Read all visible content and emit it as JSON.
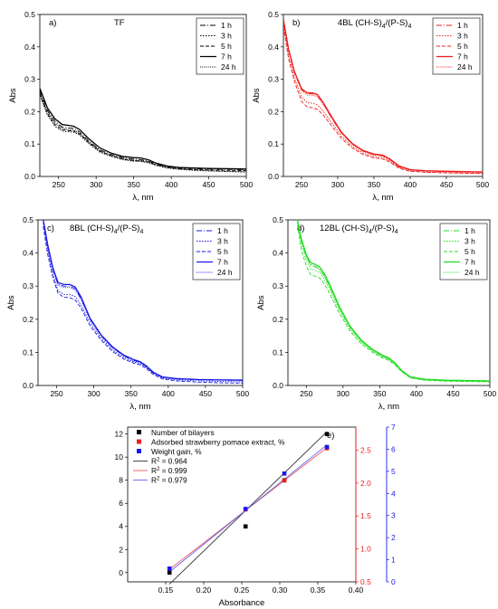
{
  "figure": {
    "panels": [
      {
        "panel_label": "a)",
        "title": "TF",
        "title_sub": "",
        "xlabel": "λ, nm",
        "ylabel": "Abs",
        "xlim": [
          225,
          500
        ],
        "ylim": [
          0,
          0.5
        ],
        "xticks": [
          250,
          300,
          350,
          400,
          450,
          500
        ],
        "yticks": [
          0.0,
          0.1,
          0.2,
          0.3,
          0.4,
          0.5
        ],
        "color": "#000000",
        "legend": [
          "1 h",
          "3 h",
          "5 h",
          "7 h",
          "24 h"
        ]
      },
      {
        "panel_label": "b)",
        "title": "4BL (CH-S)",
        "title_sub": "4",
        "title_tail": "/(P-S)",
        "title_sub2": "4",
        "xlabel": "λ, nm",
        "ylabel": "Abs",
        "xlim": [
          225,
          500
        ],
        "ylim": [
          0,
          0.5
        ],
        "xticks": [
          250,
          300,
          350,
          400,
          450,
          500
        ],
        "yticks": [
          0.0,
          0.1,
          0.2,
          0.3,
          0.4,
          0.5
        ],
        "color": "#ee1c1c",
        "legend": [
          "1 h",
          "3 h",
          "5 h",
          "7 h",
          "24 h"
        ]
      },
      {
        "panel_label": "c)",
        "title": "8BL (CH-S)",
        "title_sub": "4",
        "title_tail": "/(P-S)",
        "title_sub2": "4",
        "xlabel": "λ, nm",
        "ylabel": "Abs",
        "xlim": [
          225,
          500
        ],
        "ylim": [
          0,
          0.5
        ],
        "xticks": [
          250,
          300,
          350,
          400,
          450,
          500
        ],
        "yticks": [
          0.0,
          0.1,
          0.2,
          0.3,
          0.4,
          0.5
        ],
        "color": "#1a1ae6",
        "legend": [
          "1 h",
          "3 h",
          "5 h",
          "7 h",
          "24 h"
        ]
      },
      {
        "panel_label": "d)",
        "title": "12BL (CH-S)",
        "title_sub": "4",
        "title_tail": "/(P-S)",
        "title_sub2": "4",
        "xlabel": "λ, nm",
        "ylabel": "Abs",
        "xlim": [
          225,
          500
        ],
        "ylim": [
          0,
          0.5
        ],
        "xticks": [
          250,
          300,
          350,
          400,
          450,
          500
        ],
        "yticks": [
          0.0,
          0.1,
          0.2,
          0.3,
          0.4,
          0.5
        ],
        "color": "#22dd22",
        "legend": [
          "1 h",
          "3 h",
          "5 h",
          "7 h",
          "24 h"
        ]
      }
    ],
    "panel_e": {
      "panel_label": "e)",
      "xlabel": "Absorbance",
      "xlim": [
        0.1,
        0.4
      ],
      "xticks": [
        0.15,
        0.2,
        0.25,
        0.3,
        0.35,
        0.4
      ],
      "y_left_ticks": [
        0,
        2,
        4,
        6,
        8,
        10,
        12
      ],
      "y_red_ticks": [
        0.5,
        1.0,
        1.5,
        2.0,
        2.5
      ],
      "y_blue_ticks": [
        0,
        1,
        2,
        3,
        4,
        5,
        6,
        7
      ],
      "legend": [
        {
          "label": "Number of bilayers",
          "kind": "square",
          "color": "#000000"
        },
        {
          "label": "Adsorbed strawberry pomace extract, %",
          "kind": "square",
          "color": "#ee1c1c"
        },
        {
          "label": "Weight gain, %",
          "kind": "square",
          "color": "#1a1ae6"
        },
        {
          "label": "R",
          "sup": "2",
          "tail": " = 0.964",
          "kind": "line",
          "color": "#333333"
        },
        {
          "label": "R",
          "sup": "2",
          "tail": " = 0.999",
          "kind": "line",
          "color": "#ee5555"
        },
        {
          "label": "R",
          "sup": "2",
          "tail": " = 0.979",
          "kind": "line",
          "color": "#6666ee"
        }
      ],
      "colors": {
        "black": "#000000",
        "red": "#ee1c1c",
        "blue": "#1a1ae6"
      }
    }
  },
  "chart_data": [
    {
      "type": "line",
      "title": "TF",
      "xlabel": "λ, nm",
      "ylabel": "Abs",
      "xlim": [
        225,
        500
      ],
      "ylim": [
        0,
        0.5
      ],
      "x": [
        225,
        235,
        245,
        255,
        262,
        270,
        278,
        290,
        305,
        320,
        335,
        350,
        360,
        370,
        380,
        395,
        410,
        430,
        450,
        475,
        500
      ],
      "series": [
        {
          "name": "1 h",
          "values": [
            0.265,
            0.205,
            0.17,
            0.152,
            0.15,
            0.148,
            0.138,
            0.11,
            0.082,
            0.068,
            0.058,
            0.053,
            0.052,
            0.047,
            0.038,
            0.03,
            0.026,
            0.024,
            0.023,
            0.022,
            0.021
          ]
        },
        {
          "name": "3 h",
          "values": [
            0.25,
            0.19,
            0.155,
            0.14,
            0.138,
            0.137,
            0.128,
            0.102,
            0.075,
            0.062,
            0.052,
            0.047,
            0.046,
            0.042,
            0.034,
            0.026,
            0.022,
            0.019,
            0.017,
            0.015,
            0.013
          ]
        },
        {
          "name": "5 h",
          "values": [
            0.255,
            0.195,
            0.16,
            0.144,
            0.142,
            0.14,
            0.131,
            0.105,
            0.078,
            0.064,
            0.054,
            0.049,
            0.048,
            0.044,
            0.036,
            0.028,
            0.024,
            0.021,
            0.02,
            0.019,
            0.018
          ]
        },
        {
          "name": "7 h",
          "values": [
            0.272,
            0.212,
            0.178,
            0.16,
            0.158,
            0.155,
            0.145,
            0.117,
            0.088,
            0.072,
            0.062,
            0.058,
            0.057,
            0.051,
            0.041,
            0.032,
            0.028,
            0.026,
            0.025,
            0.024,
            0.023
          ]
        },
        {
          "name": "24 h",
          "values": [
            0.26,
            0.2,
            0.165,
            0.148,
            0.145,
            0.143,
            0.134,
            0.107,
            0.079,
            0.065,
            0.055,
            0.05,
            0.049,
            0.045,
            0.036,
            0.027,
            0.023,
            0.02,
            0.018,
            0.016,
            0.015
          ]
        }
      ]
    },
    {
      "type": "line",
      "title": "4BL (CH-S)4/(P-S)4",
      "xlabel": "λ, nm",
      "ylabel": "Abs",
      "xlim": [
        225,
        500
      ],
      "ylim": [
        0,
        0.5
      ],
      "x": [
        225,
        232,
        240,
        250,
        258,
        265,
        272,
        280,
        292,
        305,
        320,
        335,
        350,
        362,
        372,
        385,
        400,
        420,
        450,
        475,
        500
      ],
      "series": [
        {
          "name": "1 h",
          "values": [
            0.48,
            0.39,
            0.32,
            0.268,
            0.255,
            0.255,
            0.25,
            0.225,
            0.18,
            0.135,
            0.1,
            0.078,
            0.067,
            0.064,
            0.052,
            0.03,
            0.02,
            0.017,
            0.015,
            0.014,
            0.013
          ]
        },
        {
          "name": "3 h",
          "values": [
            0.47,
            0.375,
            0.305,
            0.245,
            0.228,
            0.226,
            0.221,
            0.202,
            0.165,
            0.125,
            0.093,
            0.072,
            0.061,
            0.058,
            0.047,
            0.027,
            0.017,
            0.014,
            0.012,
            0.011,
            0.01
          ]
        },
        {
          "name": "5 h",
          "values": [
            0.462,
            0.365,
            0.295,
            0.232,
            0.214,
            0.212,
            0.207,
            0.19,
            0.155,
            0.118,
            0.088,
            0.068,
            0.057,
            0.054,
            0.044,
            0.025,
            0.016,
            0.013,
            0.011,
            0.01,
            0.009
          ]
        },
        {
          "name": "7 h",
          "values": [
            0.485,
            0.395,
            0.325,
            0.271,
            0.258,
            0.258,
            0.253,
            0.228,
            0.183,
            0.137,
            0.102,
            0.08,
            0.069,
            0.066,
            0.054,
            0.032,
            0.021,
            0.018,
            0.016,
            0.015,
            0.014
          ]
        },
        {
          "name": "24 h",
          "values": [
            0.482,
            0.392,
            0.322,
            0.265,
            0.251,
            0.251,
            0.246,
            0.222,
            0.178,
            0.133,
            0.099,
            0.077,
            0.066,
            0.063,
            0.051,
            0.03,
            0.02,
            0.017,
            0.015,
            0.014,
            0.013
          ]
        }
      ]
    },
    {
      "type": "line",
      "title": "8BL (CH-S)4/(P-S)4",
      "xlabel": "λ, nm",
      "ylabel": "Abs",
      "xlim": [
        225,
        500
      ],
      "ylim": [
        0,
        0.5
      ],
      "x": [
        232,
        238,
        245,
        252,
        260,
        268,
        275,
        283,
        295,
        310,
        325,
        340,
        355,
        362,
        370,
        380,
        392,
        410,
        440,
        470,
        500
      ],
      "series": [
        {
          "name": "1 h",
          "values": [
            0.5,
            0.42,
            0.35,
            0.305,
            0.3,
            0.3,
            0.292,
            0.262,
            0.2,
            0.15,
            0.115,
            0.09,
            0.075,
            0.07,
            0.058,
            0.038,
            0.025,
            0.02,
            0.017,
            0.016,
            0.015
          ]
        },
        {
          "name": "3 h",
          "values": [
            0.49,
            0.405,
            0.335,
            0.285,
            0.275,
            0.275,
            0.268,
            0.242,
            0.188,
            0.142,
            0.108,
            0.084,
            0.07,
            0.066,
            0.055,
            0.036,
            0.022,
            0.017,
            0.014,
            0.012,
            0.011
          ]
        },
        {
          "name": "5 h",
          "values": [
            0.48,
            0.395,
            0.325,
            0.278,
            0.266,
            0.265,
            0.258,
            0.233,
            0.18,
            0.136,
            0.103,
            0.08,
            0.066,
            0.062,
            0.052,
            0.033,
            0.02,
            0.014,
            0.01,
            0.008,
            0.007
          ]
        },
        {
          "name": "7 h",
          "values": [
            0.5,
            0.425,
            0.355,
            0.31,
            0.305,
            0.305,
            0.297,
            0.266,
            0.203,
            0.152,
            0.117,
            0.092,
            0.077,
            0.072,
            0.06,
            0.04,
            0.026,
            0.021,
            0.018,
            0.017,
            0.016
          ]
        },
        {
          "name": "24 h",
          "values": [
            0.497,
            0.418,
            0.348,
            0.302,
            0.296,
            0.296,
            0.288,
            0.258,
            0.197,
            0.148,
            0.113,
            0.088,
            0.073,
            0.069,
            0.057,
            0.038,
            0.025,
            0.02,
            0.018,
            0.017,
            0.017
          ]
        }
      ]
    },
    {
      "type": "line",
      "title": "12BL (CH-S)4/(P-S)4",
      "xlabel": "λ, nm",
      "ylabel": "Abs",
      "xlim": [
        225,
        500
      ],
      "ylim": [
        0,
        0.5
      ],
      "x": [
        238,
        243,
        250,
        256,
        262,
        268,
        275,
        283,
        295,
        310,
        325,
        340,
        355,
        362,
        370,
        380,
        392,
        410,
        440,
        470,
        500
      ],
      "series": [
        {
          "name": "1 h",
          "values": [
            0.5,
            0.44,
            0.39,
            0.365,
            0.36,
            0.352,
            0.33,
            0.295,
            0.235,
            0.175,
            0.135,
            0.107,
            0.088,
            0.082,
            0.068,
            0.044,
            0.025,
            0.018,
            0.015,
            0.014,
            0.013
          ]
        },
        {
          "name": "3 h",
          "values": [
            0.495,
            0.43,
            0.378,
            0.352,
            0.348,
            0.341,
            0.32,
            0.286,
            0.228,
            0.17,
            0.131,
            0.104,
            0.085,
            0.079,
            0.066,
            0.043,
            0.024,
            0.017,
            0.014,
            0.013,
            0.012
          ]
        },
        {
          "name": "5 h",
          "values": [
            0.485,
            0.412,
            0.36,
            0.335,
            0.33,
            0.325,
            0.305,
            0.273,
            0.218,
            0.163,
            0.126,
            0.1,
            0.082,
            0.076,
            0.064,
            0.041,
            0.023,
            0.016,
            0.013,
            0.012,
            0.011
          ]
        },
        {
          "name": "7 h",
          "values": [
            0.5,
            0.445,
            0.395,
            0.37,
            0.366,
            0.358,
            0.336,
            0.3,
            0.238,
            0.178,
            0.137,
            0.109,
            0.09,
            0.084,
            0.07,
            0.045,
            0.026,
            0.019,
            0.016,
            0.015,
            0.014
          ]
        },
        {
          "name": "24 h",
          "values": [
            0.498,
            0.438,
            0.387,
            0.362,
            0.357,
            0.35,
            0.328,
            0.293,
            0.233,
            0.174,
            0.134,
            0.106,
            0.087,
            0.081,
            0.068,
            0.044,
            0.025,
            0.018,
            0.015,
            0.014,
            0.013
          ]
        }
      ]
    },
    {
      "type": "scatter",
      "xlabel": "Absorbance",
      "xlim": [
        0.1,
        0.4
      ],
      "series": [
        {
          "name": "Number of bilayers",
          "axis": "left",
          "ylim": [
            -0.8,
            12.6
          ],
          "x": [
            0.155,
            0.255,
            0.306,
            0.362
          ],
          "values": [
            0,
            4,
            8,
            12
          ],
          "fit": {
            "r2": 0.964,
            "x": [
              0.155,
              0.362
            ],
            "y": [
              -1.0,
              12.2
            ]
          }
        },
        {
          "name": "Adsorbed strawberry pomace extract, %",
          "axis": "right-red",
          "ylim": [
            0.5,
            2.85
          ],
          "x": [
            0.155,
            0.255,
            0.306,
            0.362
          ],
          "values": [
            0.7,
            1.6,
            2.04,
            2.53
          ],
          "fit": {
            "r2": 0.999,
            "x": [
              0.155,
              0.362
            ],
            "y": [
              0.69,
              2.54
            ]
          }
        },
        {
          "name": "Weight gain, %",
          "axis": "right-blue",
          "ylim": [
            0,
            7.0
          ],
          "x": [
            0.155,
            0.255,
            0.306,
            0.362
          ],
          "values": [
            0.6,
            3.3,
            4.9,
            6.1
          ],
          "fit": {
            "r2": 0.979,
            "x": [
              0.155,
              0.362
            ],
            "y": [
              0.45,
              6.2
            ]
          }
        }
      ]
    }
  ]
}
